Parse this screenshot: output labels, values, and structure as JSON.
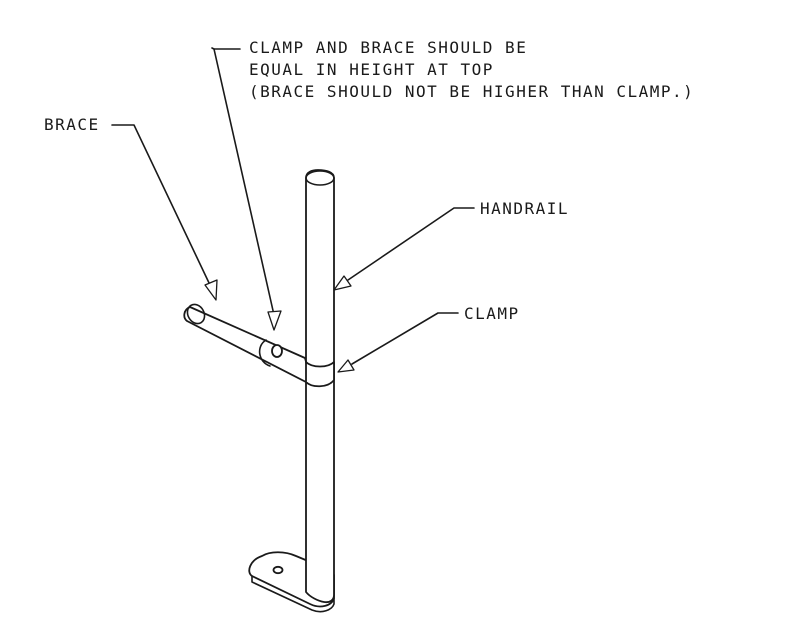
{
  "labels": {
    "note_line1": "CLAMP AND BRACE SHOULD BE",
    "note_line2": "EQUAL IN HEIGHT AT TOP",
    "note_line3": "(BRACE SHOULD NOT BE HIGHER THAN CLAMP.)",
    "brace": "BRACE",
    "handrail": "HANDRAIL",
    "clamp": "CLAMP"
  },
  "colors": {
    "ink": "#1a1a1a",
    "background": "#ffffff"
  }
}
